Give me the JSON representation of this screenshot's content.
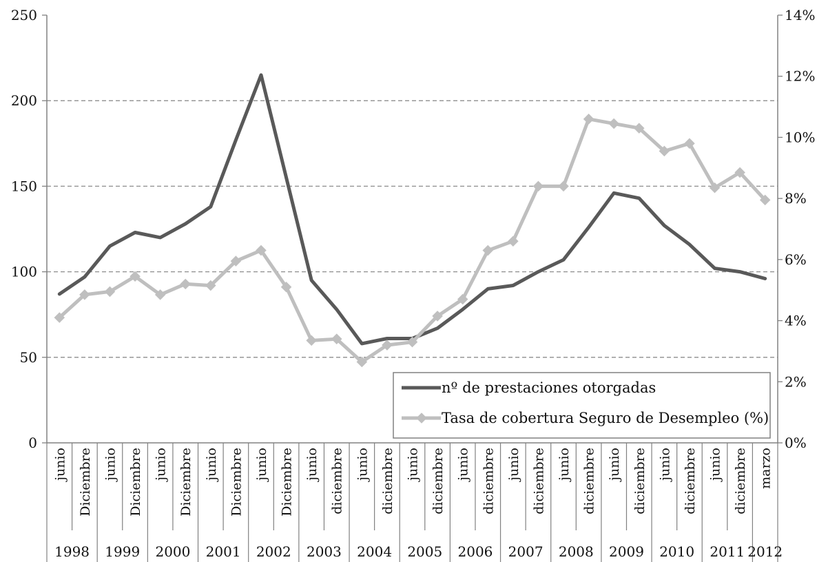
{
  "chart_data": {
    "type": "line",
    "title": "",
    "xlabel": "",
    "ylabel": "",
    "grid": true,
    "legend_position": "bottom-right",
    "y_left": {
      "min": 0,
      "max": 250,
      "ticks": [
        "0",
        "50",
        "100",
        "150",
        "200",
        "250"
      ]
    },
    "y_right": {
      "min": 0,
      "max": 14,
      "ticks": [
        "0%",
        "2%",
        "4%",
        "6%",
        "8%",
        "10%",
        "12%",
        "14%"
      ]
    },
    "categories": [
      "junio",
      "Diciembre",
      "junio",
      "Diciembre",
      "junio",
      "Diciembre",
      "junio",
      "Diciembre",
      "junio",
      "Diciembre",
      "junio",
      "diciembre",
      "junio",
      "diciembre",
      "junio",
      "diciembre",
      "junio",
      "diciembre",
      "junio",
      "diciembre",
      "junio",
      "diciembre",
      "junio",
      "diciembre",
      "junio",
      "diciembre",
      "junio",
      "diciembre",
      "marzo"
    ],
    "years": [
      {
        "label": "1998",
        "start": 0,
        "count": 2
      },
      {
        "label": "1999",
        "start": 2,
        "count": 2
      },
      {
        "label": "2000",
        "start": 4,
        "count": 2
      },
      {
        "label": "2001",
        "start": 6,
        "count": 2
      },
      {
        "label": "2002",
        "start": 8,
        "count": 2
      },
      {
        "label": "2003",
        "start": 10,
        "count": 2
      },
      {
        "label": "2004",
        "start": 12,
        "count": 2
      },
      {
        "label": "2005",
        "start": 14,
        "count": 2
      },
      {
        "label": "2006",
        "start": 16,
        "count": 2
      },
      {
        "label": "2007",
        "start": 18,
        "count": 2
      },
      {
        "label": "2008",
        "start": 20,
        "count": 2
      },
      {
        "label": "2009",
        "start": 22,
        "count": 2
      },
      {
        "label": "2010",
        "start": 24,
        "count": 2
      },
      {
        "label": "2011",
        "start": 26,
        "count": 2
      },
      {
        "label": "2012",
        "start": 28,
        "count": 1
      }
    ],
    "series": [
      {
        "name": "nº de prestaciones otorgadas",
        "axis": "left",
        "color": "#595959",
        "marker": "none",
        "values": [
          87,
          97,
          115,
          123,
          120,
          128,
          138,
          177,
          215,
          155,
          95,
          78,
          58,
          61,
          61,
          67,
          78,
          90,
          92,
          100,
          107,
          126,
          146,
          143,
          127,
          116,
          102,
          100,
          96
        ]
      },
      {
        "name": "Tasa de cobertura Seguro de Desempleo (%)",
        "axis": "right",
        "color": "#bfbfbf",
        "marker": "diamond",
        "values": [
          4.1,
          4.85,
          4.95,
          5.45,
          4.85,
          5.2,
          5.15,
          5.95,
          6.3,
          5.1,
          3.35,
          3.4,
          2.65,
          3.2,
          3.3,
          4.15,
          4.7,
          6.3,
          6.6,
          8.4,
          8.4,
          10.6,
          10.45,
          10.3,
          9.55,
          9.8,
          8.35,
          8.85,
          7.95
        ]
      }
    ]
  }
}
